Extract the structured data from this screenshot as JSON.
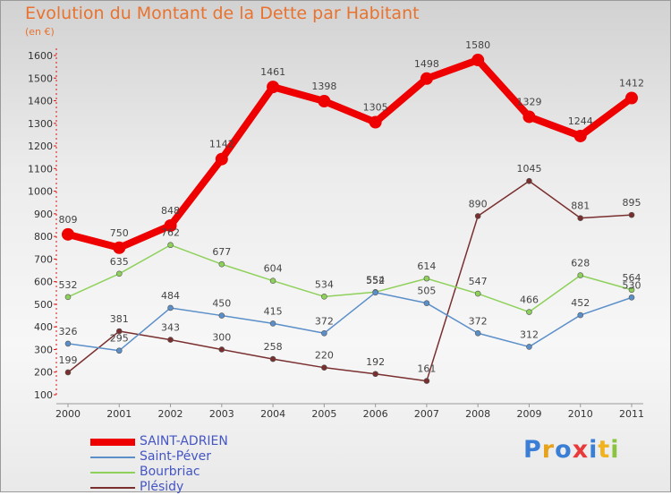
{
  "chart_data": {
    "type": "line",
    "title": "Evolution du Montant de la Dette par Habitant",
    "unit": "(en €)",
    "x": [
      "2000",
      "2001",
      "2002",
      "2003",
      "2004",
      "2005",
      "2006",
      "2007",
      "2008",
      "2009",
      "2010",
      "2011"
    ],
    "ylim": [
      100,
      1600
    ],
    "yticks": [
      100,
      200,
      300,
      400,
      500,
      600,
      700,
      800,
      900,
      1000,
      1100,
      1200,
      1300,
      1400,
      1500,
      1600
    ],
    "grid": false,
    "legend_position": "bottom-left",
    "series": [
      {
        "name": "SAINT-ADRIEN",
        "color": "#ee0000",
        "values": [
          809,
          750,
          848,
          1142,
          1461,
          1398,
          1305,
          1498,
          1580,
          1329,
          1244,
          1412
        ]
      },
      {
        "name": "Saint-Péver",
        "color": "#5b8fc9",
        "values": [
          326,
          295,
          484,
          450,
          415,
          372,
          552,
          505,
          372,
          312,
          452,
          530
        ]
      },
      {
        "name": "Bourbriac",
        "color": "#8ed15a",
        "values": [
          532,
          635,
          762,
          677,
          604,
          534,
          554,
          614,
          547,
          466,
          628,
          564
        ]
      },
      {
        "name": "Plésidy",
        "color": "#7a2f2f",
        "values": [
          199,
          381,
          343,
          300,
          258,
          220,
          192,
          161,
          890,
          1045,
          881,
          895
        ]
      }
    ]
  },
  "logo": {
    "letters": [
      "P",
      "r",
      "o",
      "x",
      "i",
      "t",
      "i"
    ],
    "colors": [
      "#3a7fd5",
      "#e8a21a",
      "#3a7fd5",
      "#e83a3a",
      "#3a7fd5",
      "#f0b31f",
      "#8ac43f"
    ]
  }
}
